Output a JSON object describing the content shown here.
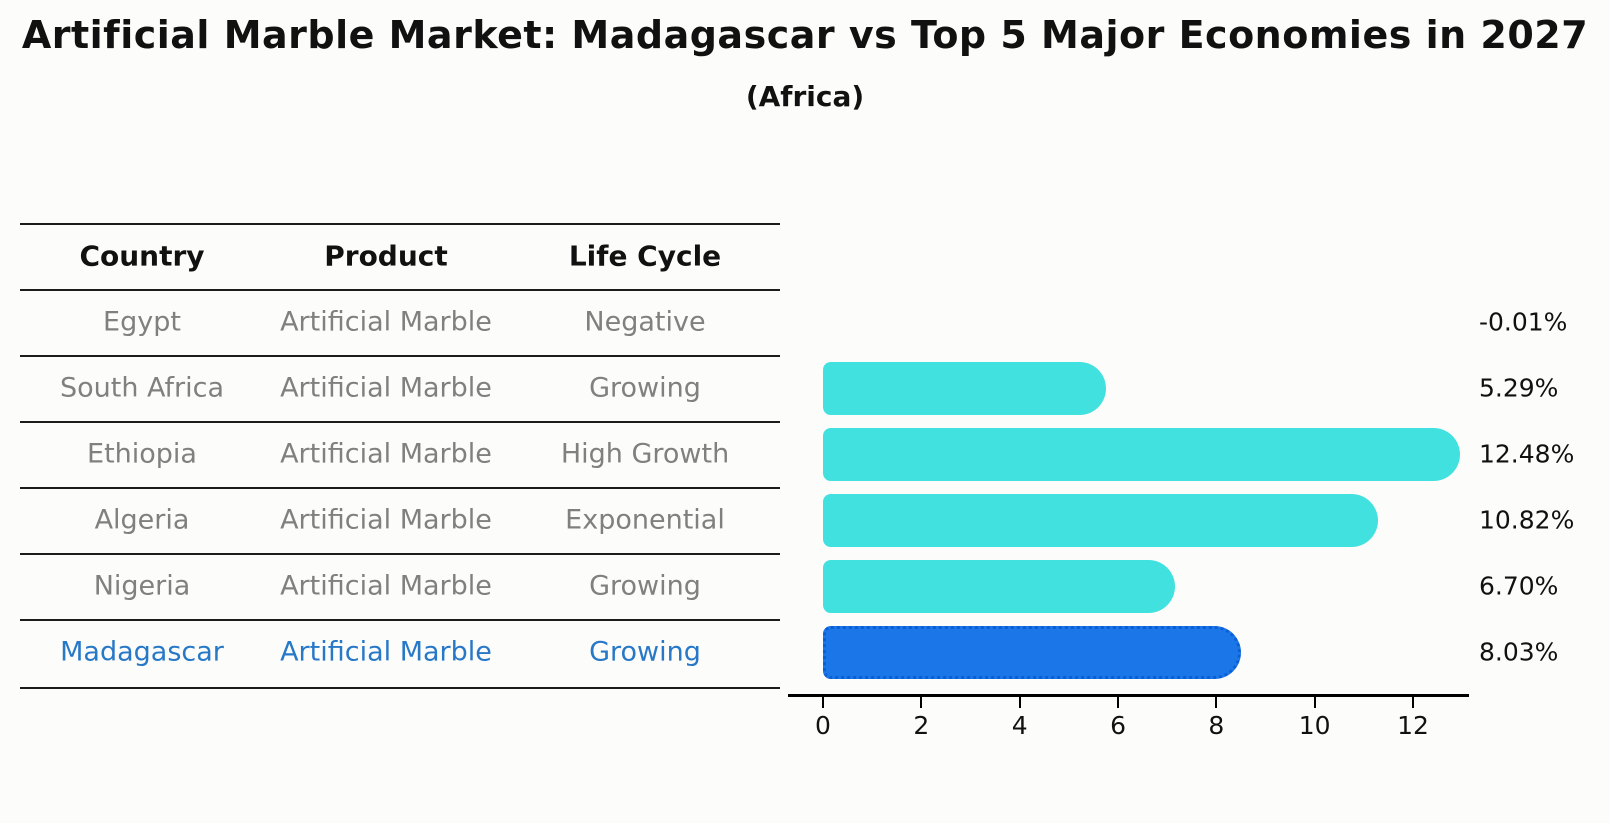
{
  "header": {
    "title": "Artificial Marble Market: Madagascar vs Top 5 Major Economies in 2027",
    "subtitle": "(Africa)"
  },
  "table": {
    "headers": [
      "Country",
      "Product",
      "Life Cycle"
    ],
    "rows": [
      {
        "country": "Egypt",
        "product": "Artificial Marble",
        "life_cycle": "Negative"
      },
      {
        "country": "South Africa",
        "product": "Artificial Marble",
        "life_cycle": "Growing"
      },
      {
        "country": "Ethiopia",
        "product": "Artificial Marble",
        "life_cycle": "High Growth"
      },
      {
        "country": "Algeria",
        "product": "Artificial Marble",
        "life_cycle": "Exponential"
      },
      {
        "country": "Nigeria",
        "product": "Artificial Marble",
        "life_cycle": "Growing"
      },
      {
        "country": "Madagascar",
        "product": "Artificial Marble",
        "life_cycle": "Growing"
      }
    ]
  },
  "chart_data": {
    "type": "bar",
    "orientation": "horizontal",
    "title": "Artificial Marble Market: Madagascar vs Top 5 Major Economies in 2027 (Africa)",
    "categories": [
      "Egypt",
      "South Africa",
      "Ethiopia",
      "Algeria",
      "Nigeria",
      "Madagascar"
    ],
    "values": [
      -0.01,
      5.29,
      12.48,
      10.82,
      6.7,
      8.03
    ],
    "value_labels": [
      "-0.01%",
      "5.29%",
      "12.48%",
      "10.82%",
      "6.70%",
      "8.03%"
    ],
    "x_ticks": [
      0,
      2,
      4,
      6,
      8,
      10,
      12
    ],
    "xlim": [
      -0.66,
      13.14
    ],
    "grid": false,
    "legend": "none",
    "highlight_index": 5,
    "colors": {
      "bar": "#40E1DF",
      "highlight_bar": "#1B76E8",
      "highlight_border": "#0A5FD6",
      "highlight_text": "#2878C8",
      "row_text": "#808080"
    }
  }
}
